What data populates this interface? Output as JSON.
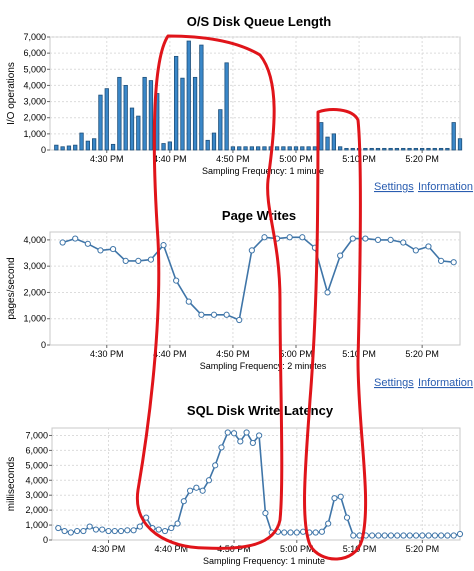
{
  "chart_data": [
    {
      "type": "bar",
      "title": "O/S Disk Queue Length",
      "xlabel": "Sampling Frequency: 1 minute",
      "ylabel": "I/O operations",
      "ylim": [
        0,
        7000
      ],
      "yticks": [
        "0",
        "1,000",
        "2,000",
        "3,000",
        "4,000",
        "5,000",
        "6,000",
        "7,000"
      ],
      "xticks": [
        "4:30 PM",
        "4:40 PM",
        "4:50 PM",
        "5:00 PM",
        "5:10 PM",
        "5:20 PM"
      ],
      "x_start_min": 21,
      "x_end_min": 86,
      "x_tick_minutes": [
        30,
        40,
        50,
        60,
        70,
        80
      ],
      "grid": true,
      "series": [
        {
          "x": [
            22,
            23,
            24,
            25,
            26,
            27,
            28,
            29,
            30,
            31,
            32,
            33,
            34,
            35,
            36,
            37,
            38,
            39,
            40,
            41,
            42,
            43,
            44,
            45,
            46,
            47,
            48,
            49,
            50,
            51,
            52,
            53,
            54,
            55,
            56,
            57,
            58,
            59,
            60,
            61,
            62,
            63,
            64,
            65,
            66,
            67,
            68,
            69,
            70,
            71,
            72,
            73,
            74,
            75,
            76,
            77,
            78,
            79,
            80,
            81,
            82,
            83,
            84,
            85,
            86
          ],
          "values": [
            300,
            200,
            250,
            300,
            1050,
            550,
            700,
            3400,
            3800,
            350,
            4500,
            4000,
            2600,
            2100,
            4500,
            4300,
            3500,
            400,
            500,
            5800,
            4450,
            6750,
            4500,
            6500,
            600,
            1050,
            2500,
            5400,
            200,
            200,
            200,
            200,
            200,
            200,
            200,
            200,
            200,
            200,
            200,
            200,
            200,
            200,
            1700,
            800,
            1000,
            200,
            100,
            100,
            100,
            100,
            100,
            100,
            100,
            100,
            100,
            100,
            100,
            100,
            100,
            100,
            100,
            100,
            100,
            1700,
            700
          ]
        }
      ],
      "links": []
    },
    {
      "type": "line",
      "title": "Page Writes",
      "xlabel": "Sampling Frequency: 2 minutes",
      "ylabel": "pages/second",
      "ylim": [
        0,
        4300
      ],
      "yticks": [
        "0",
        "1,000",
        "2,000",
        "3,000",
        "4,000"
      ],
      "xticks": [
        "4:30 PM",
        "4:40 PM",
        "4:50 PM",
        "5:00 PM",
        "5:10 PM",
        "5:20 PM"
      ],
      "x_start_min": 21,
      "x_end_min": 86,
      "x_tick_minutes": [
        30,
        40,
        50,
        60,
        70,
        80
      ],
      "grid": true,
      "series": [
        {
          "x": [
            23,
            25,
            27,
            29,
            31,
            33,
            35,
            37,
            39,
            41,
            43,
            45,
            47,
            49,
            51,
            53,
            55,
            57,
            59,
            61,
            63,
            65,
            67,
            69,
            71,
            73,
            75,
            77,
            79,
            81,
            83,
            85
          ],
          "values": [
            3900,
            4050,
            3850,
            3600,
            3650,
            3200,
            3200,
            3250,
            3800,
            2450,
            1650,
            1150,
            1150,
            1150,
            950,
            3600,
            4100,
            4050,
            4100,
            4100,
            3700,
            2000,
            3400,
            4050,
            4050,
            4000,
            4000,
            3900,
            3600,
            3750,
            3200,
            3150
          ]
        }
      ],
      "links": [
        "Settings",
        "Information"
      ]
    },
    {
      "type": "line",
      "title": "SQL Disk Write Latency",
      "xlabel": "Sampling Frequency: 1 minute",
      "ylabel": "milliseconds",
      "ylim": [
        0,
        7500
      ],
      "yticks": [
        "0",
        "1,000",
        "2,000",
        "3,000",
        "4,000",
        "5,000",
        "6,000",
        "7,000"
      ],
      "xticks": [
        "4:30 PM",
        "4:40 PM",
        "4:50 PM",
        "5:00 PM",
        "5:10 PM",
        "5:20 PM"
      ],
      "x_start_min": 21,
      "x_end_min": 86,
      "x_tick_minutes": [
        30,
        40,
        50,
        60,
        70,
        80
      ],
      "grid": true,
      "series": [
        {
          "x": [
            22,
            23,
            24,
            25,
            26,
            27,
            28,
            29,
            30,
            31,
            32,
            33,
            34,
            35,
            36,
            37,
            38,
            39,
            40,
            41,
            42,
            43,
            44,
            45,
            46,
            47,
            48,
            49,
            50,
            51,
            52,
            53,
            54,
            55,
            56,
            57,
            58,
            59,
            60,
            61,
            62,
            63,
            64,
            65,
            66,
            67,
            68,
            69,
            70,
            71,
            72,
            73,
            74,
            75,
            76,
            77,
            78,
            79,
            80,
            81,
            82,
            83,
            84,
            85,
            86
          ],
          "values": [
            800,
            600,
            500,
            600,
            600,
            900,
            700,
            700,
            600,
            600,
            600,
            650,
            650,
            900,
            1500,
            800,
            700,
            600,
            800,
            1100,
            2600,
            3300,
            3500,
            3300,
            4000,
            5000,
            6200,
            7200,
            7150,
            6600,
            7200,
            6500,
            7000,
            1800,
            500,
            550,
            500,
            500,
            500,
            550,
            500,
            500,
            550,
            1100,
            2800,
            2900,
            1500,
            300,
            300,
            300,
            300,
            300,
            300,
            300,
            300,
            300,
            300,
            300,
            300,
            300,
            300,
            300,
            300,
            300,
            400
          ]
        }
      ],
      "links": [
        "Settings",
        "Information"
      ]
    }
  ]
}
